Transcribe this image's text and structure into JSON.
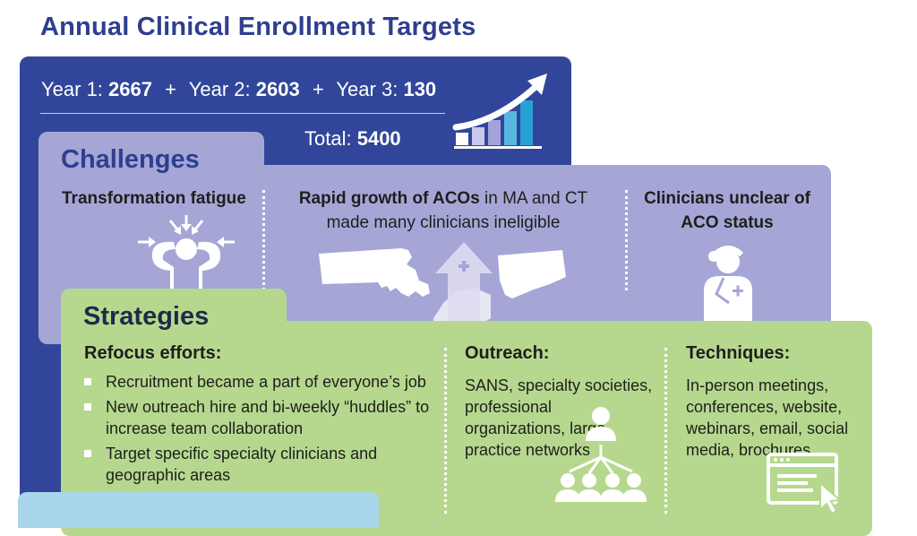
{
  "title": "Annual Clinical Enrollment Targets",
  "targets": {
    "year1_label": "Year 1:",
    "year1_value": "2667",
    "year2_label": "Year 2:",
    "year2_value": "2603",
    "year3_label": "Year 3:",
    "year3_value": "130",
    "plus": "+",
    "total_label": "Total:",
    "total_value": "5400",
    "icon": "growth-chart-icon"
  },
  "challenges": {
    "heading": "Challenges",
    "items": [
      {
        "title": "Transformation fatigue",
        "icon": "stressed-person-icon"
      },
      {
        "title_bold": "Rapid growth of ACOs",
        "title_rest": " in MA and CT",
        "subtitle": "made many clinicians ineligible",
        "icon": "ma-ct-map-icon"
      },
      {
        "title": "Clinicians unclear of ACO status",
        "icon": "doctor-icon"
      }
    ]
  },
  "strategies": {
    "heading": "Strategies",
    "refocus": {
      "title": "Refocus efforts:",
      "bullets": [
        "Recruitment became a part of everyone’s job",
        "New outreach hire and bi-weekly “huddles” to increase team collaboration",
        "Target specific specialty clinicians and geographic areas"
      ]
    },
    "outreach": {
      "title": "Outreach:",
      "text": "SANS, specialty societies, professional organizations, large practice networks",
      "icon": "network-hierarchy-icon"
    },
    "techniques": {
      "title": "Techniques:",
      "text": "In-person meetings, conferences, website, webinars, email, social media, brochures",
      "icon": "web-browser-click-icon"
    }
  },
  "colors": {
    "title": "#2e3f8f",
    "targets_panel": "#31469a",
    "challenges_panel": "#a5a6d6",
    "strategies_panel": "#b6d88e",
    "bottom_tab": "#a9d6ea"
  }
}
